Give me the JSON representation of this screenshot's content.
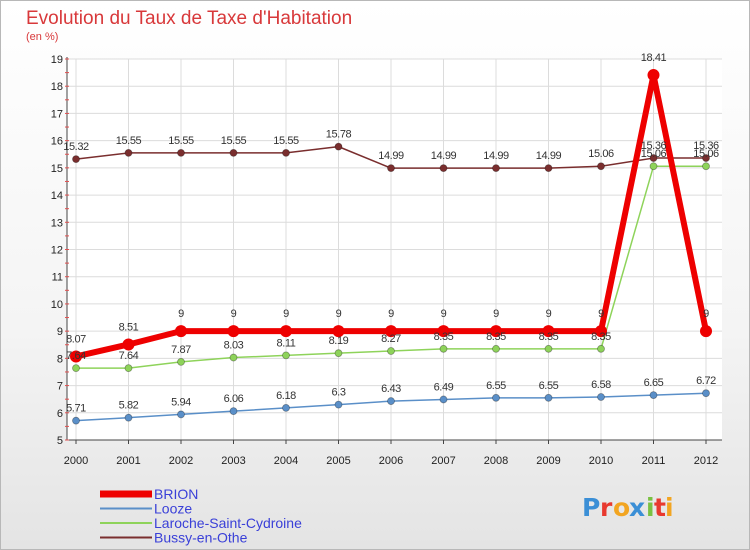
{
  "chart_data": {
    "type": "line",
    "title": "Evolution du Taux de Taxe d'Habitation",
    "subtitle": "(en %)",
    "xlabel": "",
    "ylabel": "",
    "x": [
      "2000",
      "2001",
      "2002",
      "2003",
      "2004",
      "2005",
      "2006",
      "2007",
      "2008",
      "2009",
      "2010",
      "2011",
      "2012"
    ],
    "ylim": [
      5,
      19
    ],
    "yticks": [
      5,
      6,
      7,
      8,
      9,
      10,
      11,
      12,
      13,
      14,
      15,
      16,
      17,
      18,
      19
    ],
    "grid": true,
    "legend_position": "bottom-left",
    "series": [
      {
        "name": "BRION",
        "color": "#ee0000",
        "values": [
          8.07,
          8.51,
          9,
          9,
          9,
          9,
          9,
          9,
          9,
          9,
          9,
          18.41,
          9
        ],
        "labels": [
          "8.07",
          "8.51",
          "9",
          "9",
          "9",
          "9",
          "9",
          "9",
          "9",
          "9",
          "9",
          "18.41",
          "9"
        ]
      },
      {
        "name": "Looze",
        "color": "#5a8fc8",
        "values": [
          5.71,
          5.82,
          5.94,
          6.06,
          6.18,
          6.3,
          6.43,
          6.49,
          6.55,
          6.55,
          6.58,
          6.65,
          6.72
        ],
        "labels": [
          "5.71",
          "5.82",
          "5.94",
          "6.06",
          "6.18",
          "6.3",
          "6.43",
          "6.49",
          "6.55",
          "6.55",
          "6.58",
          "6.65",
          "6.72"
        ]
      },
      {
        "name": "Laroche-Saint-Cydroine",
        "color": "#8ed35a",
        "values": [
          7.64,
          7.64,
          7.87,
          8.03,
          8.11,
          8.19,
          8.27,
          8.35,
          8.35,
          8.35,
          8.35,
          15.06,
          15.06
        ],
        "labels": [
          "7.64",
          "7.64",
          "7.87",
          "8.03",
          "8.11",
          "8.19",
          "8.27",
          "8.35",
          "8.35",
          "8.35",
          "8.35",
          "15.06",
          "15.06"
        ]
      },
      {
        "name": "Bussy-en-Othe",
        "color": "#7a2e2e",
        "values": [
          15.32,
          15.55,
          15.55,
          15.55,
          15.55,
          15.78,
          14.99,
          14.99,
          14.99,
          14.99,
          15.06,
          15.36,
          15.36
        ],
        "labels": [
          "15.32",
          "15.55",
          "15.55",
          "15.55",
          "15.55",
          "15.78",
          "14.99",
          "14.99",
          "14.99",
          "14.99",
          "15.06",
          "15.36",
          "15.36"
        ]
      }
    ]
  },
  "logo": {
    "letters": [
      "P",
      "r",
      "o",
      "x",
      "i",
      "t",
      "i"
    ],
    "colors": [
      "#3b8fd6",
      "#e8392f",
      "#f2a521",
      "#3b8fd6",
      "#7ac142",
      "#e8392f",
      "#f2a521"
    ]
  }
}
